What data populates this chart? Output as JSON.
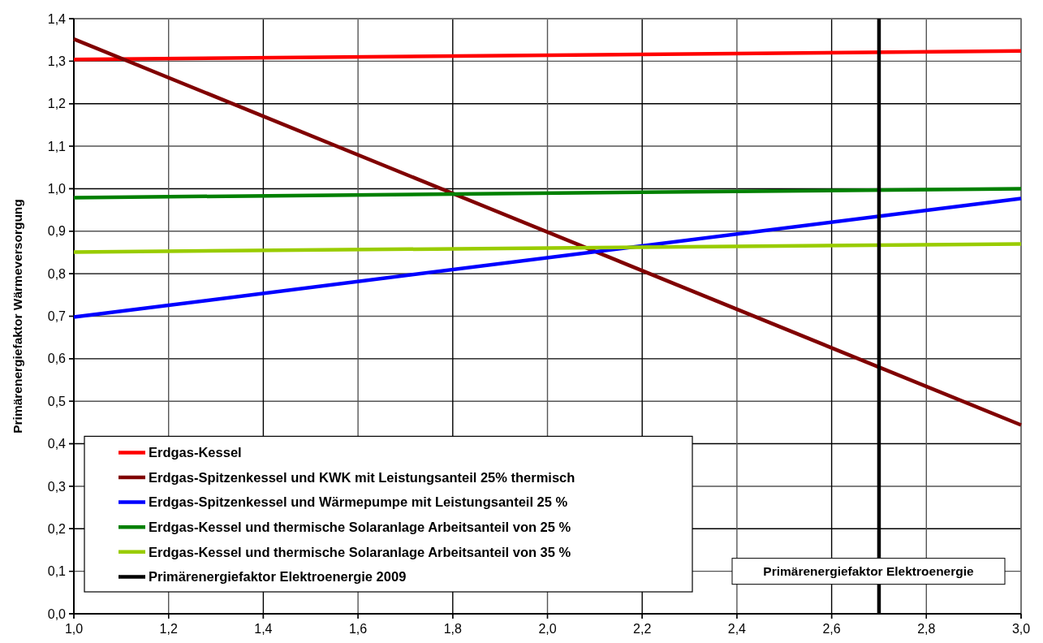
{
  "chart_data": {
    "type": "line",
    "xlabel": "Primärenergiefaktor Elektroenergie",
    "ylabel": "Primärenergiefaktor Wärmeversorgung",
    "x": [
      1.0,
      3.0
    ],
    "series": [
      {
        "name": "Erdgas-Kessel",
        "color": "#ff0000",
        "values": [
          1.304,
          1.324
        ]
      },
      {
        "name": "Erdgas-Spitzenkessel und KWK mit Leistungsanteil 25% thermisch",
        "color": "#800000",
        "values": [
          1.352,
          0.444
        ]
      },
      {
        "name": "Erdgas-Spitzenkessel und Wärmepumpe mit Leistungsanteil 25 %",
        "color": "#0000ff",
        "values": [
          0.698,
          0.977
        ]
      },
      {
        "name": "Erdgas-Kessel und thermische Solaranlage Arbeitsanteil von 25 %",
        "color": "#008000",
        "values": [
          0.979,
          1.0
        ]
      },
      {
        "name": "Erdgas-Kessel und thermische Solaranlage Arbeitsanteil von 35 %",
        "color": "#99cc00",
        "values": [
          0.851,
          0.87
        ]
      },
      {
        "name": "Primärenergiefaktor Elektroenergie 2009",
        "color": "#000000",
        "x": [
          2.7,
          2.7
        ],
        "values": [
          0.0,
          1.4
        ]
      }
    ],
    "xlim": [
      1.0,
      3.0
    ],
    "xticks": [
      {
        "value": 1.0,
        "label": "1,0"
      },
      {
        "value": 1.2,
        "label": "1,2"
      },
      {
        "value": 1.4,
        "label": "1,4"
      },
      {
        "value": 1.6,
        "label": "1,6"
      },
      {
        "value": 1.8,
        "label": "1,8"
      },
      {
        "value": 2.0,
        "label": "2,0"
      },
      {
        "value": 2.2,
        "label": "2,2"
      },
      {
        "value": 2.4,
        "label": "2,4"
      },
      {
        "value": 2.6,
        "label": "2,6"
      },
      {
        "value": 2.8,
        "label": "2,8"
      },
      {
        "value": 3.0,
        "label": "3,0"
      }
    ],
    "ylim": [
      0.0,
      1.4
    ],
    "yticks": [
      {
        "value": 0.0,
        "label": "0,0"
      },
      {
        "value": 0.1,
        "label": "0,1"
      },
      {
        "value": 0.2,
        "label": "0,2"
      },
      {
        "value": 0.3,
        "label": "0,3"
      },
      {
        "value": 0.4,
        "label": "0,4"
      },
      {
        "value": 0.5,
        "label": "0,5"
      },
      {
        "value": 0.6,
        "label": "0,6"
      },
      {
        "value": 0.7,
        "label": "0,7"
      },
      {
        "value": 0.8,
        "label": "0,8"
      },
      {
        "value": 0.9,
        "label": "0,9"
      },
      {
        "value": 1.0,
        "label": "1,0"
      },
      {
        "value": 1.1,
        "label": "1,1"
      },
      {
        "value": 1.2,
        "label": "1,2"
      },
      {
        "value": 1.3,
        "label": "1,3"
      },
      {
        "value": 1.4,
        "label": "1,4"
      }
    ],
    "grid": true,
    "legend": "bottom left",
    "marker": "none",
    "line_style": "solid"
  }
}
